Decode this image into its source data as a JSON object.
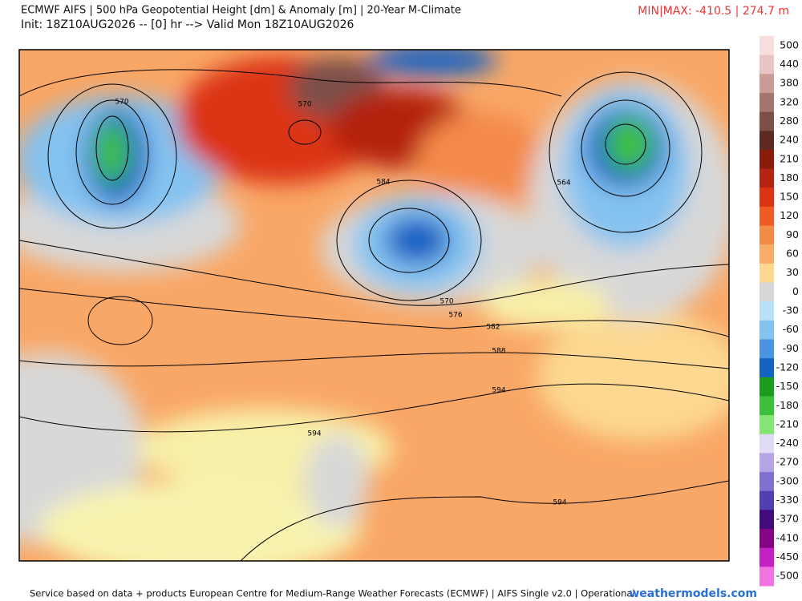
{
  "header": {
    "title": "ECMWF AIFS | 500 hPa Geopotential Height [dm] & Anomaly [m] | 20-Year M-Climate",
    "subtitle": "Init: 18Z10AUG2026 -- [0] hr --> Valid Mon 18Z10AUG2026",
    "minmax": "MIN|MAX: -410.5 | 274.7 m"
  },
  "legend": {
    "entries": [
      {
        "label": "500",
        "color": "#f8dede"
      },
      {
        "label": "440",
        "color": "#e8c4c4"
      },
      {
        "label": "380",
        "color": "#c99c98"
      },
      {
        "label": "320",
        "color": "#a47670"
      },
      {
        "label": "280",
        "color": "#7c5048"
      },
      {
        "label": "240",
        "color": "#5c2a20"
      },
      {
        "label": "210",
        "color": "#8c1a0c"
      },
      {
        "label": "180",
        "color": "#b42410"
      },
      {
        "label": "150",
        "color": "#dc3412"
      },
      {
        "label": "120",
        "color": "#f05a26"
      },
      {
        "label": "90",
        "color": "#f48a48"
      },
      {
        "label": "60",
        "color": "#f8ac66"
      },
      {
        "label": "30",
        "color": "#fcd890"
      },
      {
        "label": "0",
        "color": "#d8d8d8"
      },
      {
        "label": "-30",
        "color": "#b8e0f8"
      },
      {
        "label": "-60",
        "color": "#84c2f0"
      },
      {
        "label": "-90",
        "color": "#4a94e2"
      },
      {
        "label": "-120",
        "color": "#1462c4"
      },
      {
        "label": "-150",
        "color": "#1c9c1c"
      },
      {
        "label": "-180",
        "color": "#3cc03c"
      },
      {
        "label": "-210",
        "color": "#84e474"
      },
      {
        "label": "-240",
        "color": "#e0daf2"
      },
      {
        "label": "-270",
        "color": "#b4a4e4"
      },
      {
        "label": "-300",
        "color": "#8070d2"
      },
      {
        "label": "-330",
        "color": "#5040b2"
      },
      {
        "label": "-370",
        "color": "#420a7a"
      },
      {
        "label": "-410",
        "color": "#840484"
      },
      {
        "label": "-450",
        "color": "#c420c4"
      },
      {
        "label": "-500",
        "color": "#f274e2"
      }
    ]
  },
  "contours": [
    {
      "label": "570"
    },
    {
      "label": "570"
    },
    {
      "label": "584"
    },
    {
      "label": "564"
    },
    {
      "label": "570"
    },
    {
      "label": "576"
    },
    {
      "label": "582"
    },
    {
      "label": "588"
    },
    {
      "label": "594"
    },
    {
      "label": "594"
    },
    {
      "label": "594"
    }
  ],
  "footer": {
    "source": "Service based on data + products European Centre for Medium-Range Weather Forecasts (ECMWF) | AIFS Single v2.0 | Operational",
    "brand": "weathermodels.com"
  }
}
